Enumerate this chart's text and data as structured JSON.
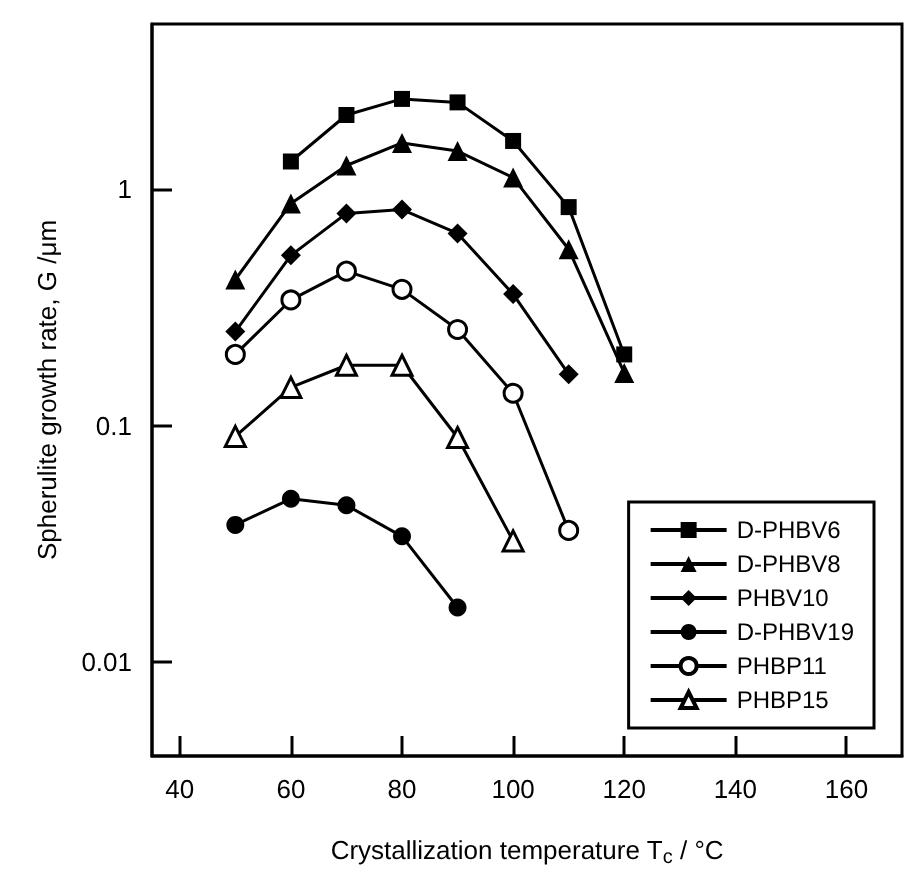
{
  "chart_data": {
    "type": "line",
    "xlabel": "Crystallization temperature T$_{c}$ / °C",
    "ylabel": "Spherulite growth rate, G /μm",
    "x": [
      50,
      60,
      70,
      80,
      90,
      100,
      110,
      120
    ],
    "xlim": [
      35,
      170
    ],
    "xticks": [
      40,
      60,
      80,
      100,
      120,
      140,
      160
    ],
    "ylim": [
      0.004,
      5
    ],
    "yticks": [
      0.01,
      0.1,
      1
    ],
    "log": "y",
    "grid": false,
    "legend": "bottom right",
    "line_style": "solid",
    "series": [
      {
        "name": "D-PHBV6",
        "color": "#000000",
        "marker": "square",
        "values": [
          null,
          1.31,
          2.06,
          2.41,
          2.33,
          1.6,
          0.84,
          0.2
        ]
      },
      {
        "name": "D-PHBV8",
        "color": "#000000",
        "marker": "triangle",
        "values": [
          0.415,
          0.87,
          1.26,
          1.57,
          1.45,
          1.12,
          0.557,
          0.167
        ]
      },
      {
        "name": "PHBV10",
        "color": "#000000",
        "marker": "diamond",
        "values": [
          0.25,
          0.525,
          0.79,
          0.82,
          0.65,
          0.36,
          0.165,
          null
        ]
      },
      {
        "name": "D-PHBV19",
        "color": "#000000",
        "marker": "circle",
        "values": [
          0.038,
          0.049,
          0.046,
          0.034,
          0.017,
          null,
          null,
          null
        ]
      },
      {
        "name": "PHBP11",
        "color": "#000000",
        "marker": "circle",
        "values": [
          0.2,
          0.34,
          0.45,
          0.377,
          0.255,
          0.137,
          0.036,
          null
        ]
      },
      {
        "name": "PHBP15",
        "color": "#000000",
        "marker": "triangle",
        "values": [
          0.09,
          0.145,
          0.18,
          0.18,
          0.089,
          0.0325,
          null,
          null
        ]
      }
    ]
  }
}
